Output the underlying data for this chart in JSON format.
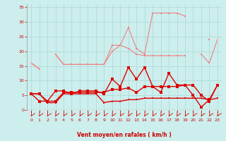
{
  "x": [
    0,
    1,
    2,
    3,
    4,
    5,
    6,
    7,
    8,
    9,
    10,
    11,
    12,
    13,
    14,
    15,
    16,
    17,
    18,
    19,
    20,
    21,
    22,
    23
  ],
  "series": [
    {
      "name": "pink_upper_spiky",
      "color": "#f08080",
      "linewidth": 0.8,
      "markersize": 2.0,
      "y": [
        16.0,
        14.0,
        null,
        19.0,
        15.5,
        15.5,
        15.5,
        15.5,
        15.5,
        15.5,
        20.0,
        22.0,
        28.0,
        21.0,
        19.0,
        33.0,
        33.0,
        33.0,
        33.0,
        32.0,
        null,
        null,
        24.0,
        null
      ]
    },
    {
      "name": "pink_mid1",
      "color": "#f08080",
      "linewidth": 0.8,
      "markersize": 2.0,
      "y": [
        null,
        null,
        null,
        null,
        null,
        null,
        null,
        null,
        null,
        null,
        null,
        null,
        null,
        null,
        null,
        null,
        null,
        null,
        null,
        null,
        null,
        19.0,
        16.0,
        24.0
      ]
    },
    {
      "name": "pink_mid2",
      "color": "#f08080",
      "linewidth": 0.8,
      "markersize": 2.0,
      "y": [
        16.0,
        14.0,
        null,
        19.0,
        15.5,
        15.5,
        15.5,
        15.5,
        15.5,
        15.5,
        22.0,
        22.0,
        21.0,
        19.0,
        18.5,
        18.5,
        18.5,
        18.5,
        18.5,
        18.5,
        null,
        null,
        null,
        null
      ]
    },
    {
      "name": "pink_lower_trend",
      "color": "#ffb0b0",
      "linewidth": 0.8,
      "markersize": 1.5,
      "y": [
        16.0,
        null,
        null,
        null,
        null,
        null,
        null,
        null,
        null,
        null,
        null,
        null,
        null,
        null,
        null,
        null,
        null,
        null,
        null,
        null,
        null,
        null,
        null,
        24.0
      ]
    },
    {
      "name": "pink_flat",
      "color": "#ffb0b0",
      "linewidth": 0.8,
      "markersize": 1.5,
      "y": [
        null,
        null,
        null,
        null,
        null,
        null,
        null,
        null,
        null,
        null,
        null,
        null,
        null,
        null,
        null,
        null,
        null,
        null,
        null,
        null,
        null,
        null,
        null,
        24.0
      ]
    },
    {
      "name": "dark_spiky",
      "color": "#dd0000",
      "linewidth": 1.0,
      "markersize": 2.5,
      "y": [
        5.5,
        3.0,
        3.0,
        6.5,
        6.5,
        5.5,
        6.5,
        6.5,
        6.5,
        5.5,
        10.5,
        8.0,
        14.5,
        10.5,
        14.5,
        8.0,
        6.0,
        12.5,
        8.5,
        8.5,
        5.0,
        1.0,
        3.5,
        8.5
      ]
    },
    {
      "name": "dark_mid",
      "color": "#dd0000",
      "linewidth": 1.0,
      "markersize": 2.5,
      "y": [
        5.5,
        5.5,
        3.0,
        3.0,
        6.0,
        6.0,
        6.0,
        6.0,
        6.0,
        6.0,
        7.0,
        7.0,
        7.5,
        6.0,
        8.0,
        8.0,
        8.0,
        8.0,
        8.0,
        8.5,
        8.5,
        5.0,
        3.0,
        8.5
      ]
    },
    {
      "name": "dark_flat",
      "color": "#dd0000",
      "linewidth": 1.0,
      "markersize": 2.0,
      "y": [
        5.5,
        5.5,
        2.5,
        2.5,
        5.5,
        5.5,
        5.5,
        5.5,
        5.5,
        2.5,
        3.0,
        3.0,
        3.5,
        3.5,
        4.0,
        4.0,
        4.0,
        4.0,
        4.0,
        4.0,
        4.0,
        4.0,
        3.5,
        4.0
      ]
    }
  ],
  "xlabel": "Vent moyen/en rafales ( km/h )",
  "xlim": [
    -0.5,
    23.5
  ],
  "ylim": [
    0,
    36
  ],
  "yticks": [
    0,
    5,
    10,
    15,
    20,
    25,
    30,
    35
  ],
  "xticks": [
    0,
    1,
    2,
    3,
    4,
    5,
    6,
    7,
    8,
    9,
    10,
    11,
    12,
    13,
    14,
    15,
    16,
    17,
    18,
    19,
    20,
    21,
    22,
    23
  ],
  "bg_color": "#cceeed",
  "grid_color": "#aad8d6",
  "tick_color": "#cc0000",
  "xlabel_color": "#cc0000"
}
